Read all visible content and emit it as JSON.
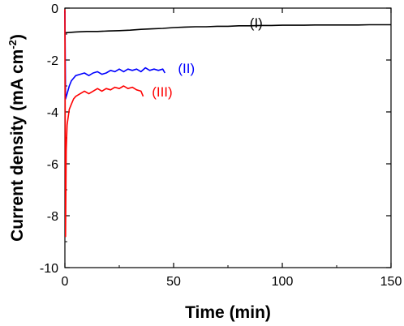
{
  "chart_data": {
    "type": "line",
    "xlabel": "Time (min)",
    "ylabel_main": "Current density (mA cm",
    "ylabel_sup": "-2",
    "ylabel_close": ")",
    "xlim": [
      0,
      150
    ],
    "ylim": [
      -10,
      0
    ],
    "x_ticks": [
      0,
      50,
      100,
      150
    ],
    "y_ticks": [
      0,
      -2,
      -4,
      -6,
      -8,
      -10
    ],
    "x_tick_labels": [
      "0",
      "50",
      "100",
      "150"
    ],
    "y_tick_labels": [
      "0",
      "-2",
      "-4",
      "-6",
      "-8",
      "-10"
    ],
    "grid": false,
    "series": [
      {
        "name": "(I)",
        "color": "#000000",
        "label_at": [
          85,
          -0.75
        ],
        "points": [
          [
            0,
            -0.95
          ],
          [
            5,
            -0.92
          ],
          [
            10,
            -0.9
          ],
          [
            15,
            -0.9
          ],
          [
            20,
            -0.88
          ],
          [
            25,
            -0.87
          ],
          [
            30,
            -0.85
          ],
          [
            35,
            -0.82
          ],
          [
            40,
            -0.8
          ],
          [
            45,
            -0.78
          ],
          [
            50,
            -0.75
          ],
          [
            55,
            -0.73
          ],
          [
            60,
            -0.72
          ],
          [
            65,
            -0.72
          ],
          [
            70,
            -0.7
          ],
          [
            75,
            -0.7
          ],
          [
            80,
            -0.68
          ],
          [
            85,
            -0.68
          ],
          [
            90,
            -0.67
          ],
          [
            95,
            -0.67
          ],
          [
            100,
            -0.66
          ],
          [
            105,
            -0.66
          ],
          [
            110,
            -0.66
          ],
          [
            115,
            -0.65
          ],
          [
            120,
            -0.65
          ],
          [
            125,
            -0.65
          ],
          [
            130,
            -0.65
          ],
          [
            135,
            -0.65
          ],
          [
            140,
            -0.64
          ],
          [
            145,
            -0.64
          ],
          [
            150,
            -0.64
          ]
        ]
      },
      {
        "name": "(II)",
        "color": "#0000ff",
        "label_at": [
          52,
          -2.5
        ],
        "points": [
          [
            0,
            -0.1
          ],
          [
            0.3,
            -3.5
          ],
          [
            1,
            -3.3
          ],
          [
            2,
            -3.0
          ],
          [
            3,
            -2.8
          ],
          [
            4,
            -2.7
          ],
          [
            5,
            -2.6
          ],
          [
            7,
            -2.55
          ],
          [
            9,
            -2.5
          ],
          [
            11,
            -2.6
          ],
          [
            13,
            -2.5
          ],
          [
            15,
            -2.45
          ],
          [
            17,
            -2.55
          ],
          [
            19,
            -2.5
          ],
          [
            21,
            -2.4
          ],
          [
            23,
            -2.45
          ],
          [
            25,
            -2.35
          ],
          [
            27,
            -2.45
          ],
          [
            29,
            -2.35
          ],
          [
            31,
            -2.4
          ],
          [
            33,
            -2.35
          ],
          [
            35,
            -2.45
          ],
          [
            37,
            -2.3
          ],
          [
            39,
            -2.4
          ],
          [
            41,
            -2.35
          ],
          [
            43,
            -2.4
          ],
          [
            45,
            -2.35
          ],
          [
            46,
            -2.5
          ]
        ]
      },
      {
        "name": "(III)",
        "color": "#ff0000",
        "label_at": [
          40,
          -3.4
        ],
        "points": [
          [
            0,
            -0.05
          ],
          [
            0.3,
            -8.8
          ],
          [
            0.6,
            -5.5
          ],
          [
            1,
            -4.5
          ],
          [
            2,
            -3.9
          ],
          [
            3,
            -3.7
          ],
          [
            4,
            -3.5
          ],
          [
            5,
            -3.4
          ],
          [
            7,
            -3.3
          ],
          [
            9,
            -3.2
          ],
          [
            11,
            -3.3
          ],
          [
            13,
            -3.2
          ],
          [
            15,
            -3.1
          ],
          [
            17,
            -3.2
          ],
          [
            19,
            -3.1
          ],
          [
            21,
            -3.15
          ],
          [
            23,
            -3.05
          ],
          [
            25,
            -3.1
          ],
          [
            27,
            -3.0
          ],
          [
            29,
            -3.1
          ],
          [
            31,
            -3.05
          ],
          [
            33,
            -3.15
          ],
          [
            35,
            -3.2
          ],
          [
            36,
            -3.4
          ]
        ]
      }
    ]
  }
}
